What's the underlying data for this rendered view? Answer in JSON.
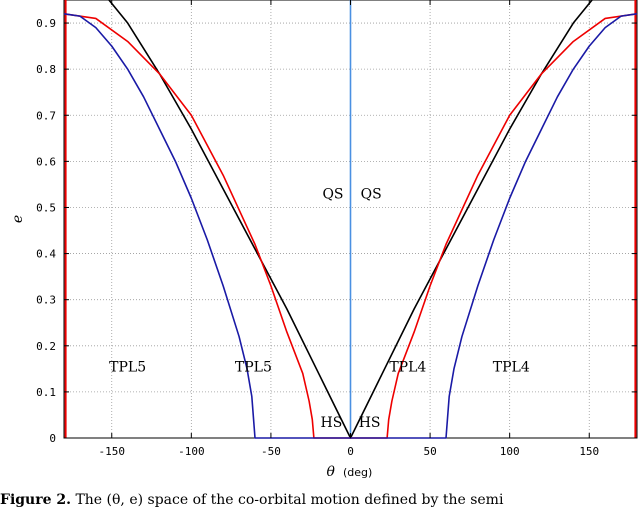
{
  "chart_data": {
    "type": "line",
    "title": "",
    "xlabel_symbol": "θ",
    "xlabel_unit": "(deg)",
    "ylabel": "e",
    "xlim": [
      -180,
      180
    ],
    "ylim": [
      0,
      0.95
    ],
    "xticks": [
      -150,
      -100,
      -50,
      0,
      50,
      100,
      150
    ],
    "yticks": [
      0,
      0.1,
      0.2,
      0.3,
      0.4,
      0.5,
      0.6,
      0.7,
      0.8,
      0.9
    ],
    "grid": true,
    "colors": {
      "black": "#000000",
      "red": "#ee0000",
      "blue": "#1a1aa6",
      "lightblue": "#4a90e2"
    },
    "series": [
      {
        "color": "black",
        "points": [
          [
            -180,
            1.0
          ],
          [
            -170,
            1.0
          ],
          [
            -160,
            0.985
          ],
          [
            -140,
            0.9
          ],
          [
            -120,
            0.79
          ],
          [
            -100,
            0.67
          ],
          [
            -80,
            0.54
          ],
          [
            -60,
            0.41
          ],
          [
            -40,
            0.28
          ],
          [
            -20,
            0.14
          ],
          [
            -10,
            0.07
          ],
          [
            0,
            0.0
          ],
          [
            10,
            0.07
          ],
          [
            20,
            0.14
          ],
          [
            40,
            0.28
          ],
          [
            60,
            0.41
          ],
          [
            80,
            0.54
          ],
          [
            100,
            0.67
          ],
          [
            120,
            0.79
          ],
          [
            140,
            0.9
          ],
          [
            160,
            0.985
          ],
          [
            170,
            1.0
          ],
          [
            180,
            1.0
          ]
        ]
      },
      {
        "color": "red",
        "points": [
          [
            -180,
            0.92
          ],
          [
            -160,
            0.91
          ],
          [
            -140,
            0.86
          ],
          [
            -120,
            0.79
          ],
          [
            -100,
            0.7
          ],
          [
            -80,
            0.57
          ],
          [
            -60,
            0.42
          ],
          [
            -50,
            0.33
          ],
          [
            -40,
            0.23
          ],
          [
            -30,
            0.14
          ],
          [
            -26,
            0.08
          ],
          [
            -24,
            0.04
          ],
          [
            -23,
            0.0
          ],
          [
            23,
            0.0
          ],
          [
            24,
            0.04
          ],
          [
            26,
            0.08
          ],
          [
            30,
            0.14
          ],
          [
            40,
            0.23
          ],
          [
            50,
            0.33
          ],
          [
            60,
            0.42
          ],
          [
            80,
            0.57
          ],
          [
            100,
            0.7
          ],
          [
            120,
            0.79
          ],
          [
            140,
            0.86
          ],
          [
            160,
            0.91
          ],
          [
            180,
            0.92
          ]
        ]
      },
      {
        "color": "blue",
        "points": [
          [
            -180,
            0.92
          ],
          [
            -170,
            0.915
          ],
          [
            -160,
            0.89
          ],
          [
            -150,
            0.85
          ],
          [
            -140,
            0.8
          ],
          [
            -130,
            0.74
          ],
          [
            -120,
            0.67
          ],
          [
            -110,
            0.6
          ],
          [
            -100,
            0.52
          ],
          [
            -90,
            0.43
          ],
          [
            -80,
            0.33
          ],
          [
            -70,
            0.22
          ],
          [
            -65,
            0.15
          ],
          [
            -62,
            0.09
          ],
          [
            -60,
            0.0
          ],
          [
            60,
            0.0
          ],
          [
            62,
            0.09
          ],
          [
            65,
            0.15
          ],
          [
            70,
            0.22
          ],
          [
            80,
            0.33
          ],
          [
            90,
            0.43
          ],
          [
            100,
            0.52
          ],
          [
            110,
            0.6
          ],
          [
            120,
            0.67
          ],
          [
            130,
            0.74
          ],
          [
            140,
            0.8
          ],
          [
            150,
            0.85
          ],
          [
            160,
            0.89
          ],
          [
            170,
            0.915
          ],
          [
            180,
            0.92
          ]
        ]
      }
    ],
    "vertical_lines": [
      {
        "x": -179,
        "color": "red"
      },
      {
        "x": 179,
        "color": "red"
      },
      {
        "x": 0,
        "color": "lightblue"
      }
    ],
    "annotations": [
      {
        "text": "QS",
        "x": -11,
        "y": 0.53
      },
      {
        "text": "QS",
        "x": 13,
        "y": 0.53
      },
      {
        "text": "TPL5",
        "x": -140,
        "y": 0.155
      },
      {
        "text": "TPL5",
        "x": -61,
        "y": 0.155
      },
      {
        "text": "TPL4",
        "x": 36,
        "y": 0.155
      },
      {
        "text": "TPL4",
        "x": 101,
        "y": 0.155
      },
      {
        "text": "HS",
        "x": -12,
        "y": 0.035
      },
      {
        "text": "HS",
        "x": 12,
        "y": 0.035
      }
    ]
  },
  "caption": {
    "label": "Figure 2.",
    "text": " The (θ, e) space of the co-orbital motion defined by the semi"
  }
}
